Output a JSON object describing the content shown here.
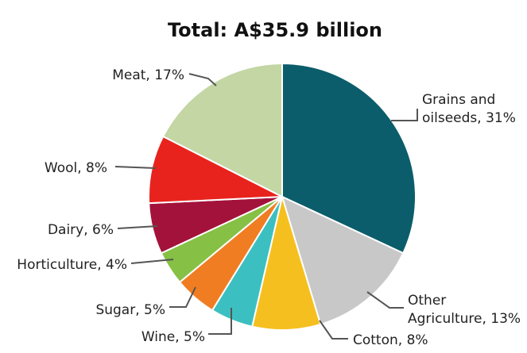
{
  "chart_data": {
    "type": "pie",
    "title": "Total: A$35.9 billion",
    "start_angle_deg": 0,
    "direction": "clockwise",
    "slices": [
      {
        "name": "Grains and oilseeds",
        "label_lines": [
          "Grains and",
          "oilseeds, 31%"
        ],
        "value": 31,
        "color": "#0b5d6b"
      },
      {
        "name": "Other Agriculture",
        "label_lines": [
          "Other",
          "Agriculture, 13%"
        ],
        "value": 13,
        "color": "#c8c8c8"
      },
      {
        "name": "Cotton",
        "label_lines": [
          "Cotton, 8%"
        ],
        "value": 8,
        "color": "#f5c01f"
      },
      {
        "name": "Wine",
        "label_lines": [
          "Wine, 5%"
        ],
        "value": 5,
        "color": "#3cbfc0"
      },
      {
        "name": "Sugar",
        "label_lines": [
          "Sugar, 5%"
        ],
        "value": 5,
        "color": "#f07d22"
      },
      {
        "name": "Horticulture",
        "label_lines": [
          "Horticulture, 4%"
        ],
        "value": 4,
        "color": "#86c045"
      },
      {
        "name": "Dairy",
        "label_lines": [
          "Dairy, 6%"
        ],
        "value": 6,
        "color": "#a3123a"
      },
      {
        "name": "Wool",
        "label_lines": [
          "Wool, 8%"
        ],
        "value": 8,
        "color": "#e8231e"
      },
      {
        "name": "Meat",
        "label_lines": [
          "Meat, 17%"
        ],
        "value": 17,
        "color": "#c3d6a4"
      }
    ],
    "units": "%"
  }
}
